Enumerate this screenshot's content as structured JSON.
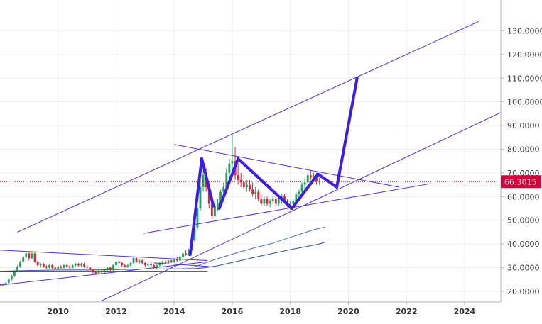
{
  "chart_data": {
    "type": "line",
    "title": "",
    "xlabel": "",
    "ylabel": "",
    "xlim": [
      2008.0,
      2025.25
    ],
    "ylim": [
      15.5,
      143.0
    ],
    "x_ticks": [
      "2010",
      "2012",
      "2014",
      "2016",
      "2018",
      "2020",
      "2022",
      "2024"
    ],
    "y_ticks": [
      "20.0000",
      "30.0000",
      "40.0000",
      "50.0000",
      "60.0000",
      "70.0000",
      "80.0000",
      "90.0000",
      "100.0000",
      "110.0000",
      "120.0000",
      "130.0000"
    ],
    "grid": true,
    "legend": "none",
    "current_price": {
      "label": "66.3015",
      "value": 66.3015,
      "color": "#d50039"
    },
    "colors": {
      "up": "#1fa65a",
      "down": "#e0223c",
      "trendline": "#4a2ee0",
      "projection": "#3a1cf0",
      "ma_fast": "#4a76b8",
      "ma_slow": "#2f4f9e",
      "axis_text": "#333333",
      "grid": "#e9eef4"
    },
    "candles": [
      [
        2008.0,
        23.0,
        23.3,
        22.2,
        22.5
      ],
      [
        2008.1,
        22.5,
        23.2,
        22.0,
        22.8
      ],
      [
        2008.2,
        22.8,
        24.0,
        22.5,
        23.5
      ],
      [
        2008.3,
        23.5,
        25.5,
        23.2,
        25.0
      ],
      [
        2008.4,
        25.0,
        27.0,
        24.5,
        26.5
      ],
      [
        2008.5,
        26.5,
        29.0,
        26.0,
        28.5
      ],
      [
        2008.6,
        28.5,
        31.0,
        28.0,
        30.5
      ],
      [
        2008.7,
        30.5,
        33.0,
        30.0,
        32.5
      ],
      [
        2008.8,
        32.5,
        35.0,
        32.0,
        34.5
      ],
      [
        2008.9,
        34.5,
        37.0,
        34.0,
        36.0
      ],
      [
        2009.0,
        36.0,
        36.5,
        33.0,
        34.0
      ],
      [
        2009.1,
        34.0,
        36.5,
        33.5,
        36.0
      ],
      [
        2009.2,
        36.0,
        36.5,
        32.0,
        32.5
      ],
      [
        2009.3,
        32.5,
        33.0,
        30.5,
        31.0
      ],
      [
        2009.4,
        31.0,
        32.0,
        30.0,
        31.5
      ],
      [
        2009.5,
        31.5,
        32.0,
        30.0,
        30.5
      ],
      [
        2009.6,
        30.5,
        31.0,
        29.5,
        30.0
      ],
      [
        2009.7,
        30.0,
        31.5,
        29.5,
        31.0
      ],
      [
        2009.8,
        31.0,
        31.5,
        29.5,
        30.0
      ],
      [
        2009.9,
        30.0,
        30.5,
        29.0,
        29.5
      ],
      [
        2010.0,
        29.5,
        31.0,
        29.0,
        30.5
      ],
      [
        2010.1,
        30.5,
        31.0,
        29.5,
        30.0
      ],
      [
        2010.2,
        30.0,
        31.5,
        29.5,
        31.0
      ],
      [
        2010.3,
        31.0,
        31.5,
        30.0,
        30.5
      ],
      [
        2010.4,
        30.5,
        31.0,
        29.5,
        30.0
      ],
      [
        2010.5,
        30.0,
        31.5,
        29.5,
        31.0
      ],
      [
        2010.6,
        31.0,
        32.0,
        30.5,
        31.5
      ],
      [
        2010.7,
        31.5,
        32.0,
        30.5,
        31.0
      ],
      [
        2010.8,
        31.0,
        32.0,
        30.5,
        31.5
      ],
      [
        2010.9,
        31.5,
        32.0,
        30.0,
        30.5
      ],
      [
        2011.0,
        30.5,
        31.0,
        29.5,
        30.0
      ],
      [
        2011.1,
        30.0,
        30.5,
        28.5,
        29.0
      ],
      [
        2011.2,
        29.0,
        29.5,
        27.5,
        28.0
      ],
      [
        2011.3,
        28.0,
        28.5,
        27.0,
        27.5
      ],
      [
        2011.4,
        27.5,
        29.0,
        27.0,
        28.5
      ],
      [
        2011.5,
        28.5,
        29.0,
        27.5,
        28.0
      ],
      [
        2011.6,
        28.0,
        29.5,
        27.5,
        29.0
      ],
      [
        2011.7,
        29.0,
        30.5,
        28.5,
        30.0
      ],
      [
        2011.8,
        30.0,
        30.5,
        28.5,
        29.0
      ],
      [
        2011.9,
        29.0,
        31.5,
        28.5,
        31.0
      ],
      [
        2012.0,
        31.0,
        33.0,
        30.5,
        32.5
      ],
      [
        2012.1,
        32.5,
        33.5,
        31.5,
        32.0
      ],
      [
        2012.2,
        32.0,
        32.5,
        30.5,
        31.0
      ],
      [
        2012.3,
        31.0,
        31.5,
        30.0,
        30.5
      ],
      [
        2012.4,
        30.5,
        31.5,
        30.0,
        31.0
      ],
      [
        2012.5,
        31.0,
        32.5,
        30.5,
        32.0
      ],
      [
        2012.6,
        32.0,
        34.5,
        31.5,
        34.0
      ],
      [
        2012.7,
        34.0,
        34.5,
        32.0,
        32.5
      ],
      [
        2012.8,
        32.5,
        33.5,
        31.5,
        33.0
      ],
      [
        2012.9,
        33.0,
        33.5,
        31.5,
        32.0
      ],
      [
        2013.0,
        32.0,
        32.5,
        30.5,
        31.0
      ],
      [
        2013.1,
        31.0,
        32.0,
        30.5,
        31.5
      ],
      [
        2013.2,
        31.5,
        32.5,
        30.5,
        31.0
      ],
      [
        2013.3,
        31.0,
        31.5,
        29.5,
        30.0
      ],
      [
        2013.4,
        30.0,
        31.5,
        29.5,
        31.0
      ],
      [
        2013.5,
        31.0,
        32.5,
        30.5,
        32.0
      ],
      [
        2013.6,
        32.0,
        33.0,
        31.0,
        32.5
      ],
      [
        2013.7,
        32.5,
        33.0,
        31.5,
        32.0
      ],
      [
        2013.8,
        32.0,
        33.5,
        31.5,
        33.0
      ],
      [
        2013.9,
        33.0,
        33.5,
        32.0,
        32.5
      ],
      [
        2014.0,
        32.5,
        34.0,
        32.0,
        33.5
      ],
      [
        2014.1,
        33.5,
        34.5,
        32.5,
        33.0
      ],
      [
        2014.2,
        33.0,
        35.0,
        32.5,
        34.5
      ],
      [
        2014.3,
        34.5,
        36.5,
        34.0,
        36.0
      ],
      [
        2014.4,
        36.0,
        37.5,
        35.0,
        35.5
      ],
      [
        2014.5,
        35.5,
        38.0,
        35.0,
        37.5
      ],
      [
        2014.6,
        37.5,
        42.0,
        37.0,
        41.5
      ],
      [
        2014.7,
        41.5,
        48.0,
        41.0,
        47.0
      ],
      [
        2014.8,
        47.0,
        56.0,
        46.0,
        55.0
      ],
      [
        2014.9,
        55.0,
        66.0,
        54.0,
        64.0
      ],
      [
        2015.0,
        64.0,
        72.0,
        62.0,
        69.0
      ],
      [
        2015.1,
        69.0,
        72.0,
        62.0,
        64.0
      ],
      [
        2015.2,
        64.0,
        66.0,
        55.0,
        57.0
      ],
      [
        2015.3,
        57.0,
        60.0,
        50.5,
        52.0
      ],
      [
        2015.4,
        52.0,
        58.0,
        51.0,
        56.0
      ],
      [
        2015.5,
        56.0,
        59.0,
        54.0,
        57.0
      ],
      [
        2015.6,
        57.0,
        63.0,
        56.0,
        62.0
      ],
      [
        2015.7,
        62.0,
        66.0,
        60.0,
        64.0
      ],
      [
        2015.8,
        64.0,
        72.0,
        63.0,
        70.0
      ],
      [
        2015.9,
        70.0,
        76.0,
        68.0,
        74.0
      ],
      [
        2016.0,
        74.0,
        86.0,
        71.0,
        75.0
      ],
      [
        2016.1,
        75.0,
        81.0,
        67.0,
        69.0
      ],
      [
        2016.2,
        69.0,
        74.0,
        65.0,
        67.0
      ],
      [
        2016.3,
        67.0,
        70.0,
        64.0,
        66.0
      ],
      [
        2016.4,
        66.0,
        69.0,
        63.0,
        64.0
      ],
      [
        2016.5,
        64.0,
        67.0,
        62.0,
        65.0
      ],
      [
        2016.6,
        65.0,
        67.0,
        62.0,
        63.0
      ],
      [
        2016.7,
        63.0,
        66.0,
        60.0,
        61.0
      ],
      [
        2016.8,
        61.0,
        64.0,
        59.0,
        62.0
      ],
      [
        2016.9,
        62.0,
        63.0,
        58.0,
        59.0
      ],
      [
        2017.0,
        59.0,
        61.0,
        56.0,
        57.0
      ],
      [
        2017.1,
        57.0,
        60.0,
        56.0,
        59.0
      ],
      [
        2017.2,
        59.0,
        60.0,
        56.0,
        57.0
      ],
      [
        2017.3,
        57.0,
        59.0,
        55.5,
        58.0
      ],
      [
        2017.4,
        58.0,
        60.0,
        57.0,
        59.0
      ],
      [
        2017.5,
        59.0,
        60.0,
        56.0,
        57.0
      ],
      [
        2017.6,
        57.0,
        60.0,
        56.0,
        59.0
      ],
      [
        2017.7,
        59.0,
        61.0,
        57.0,
        60.0
      ],
      [
        2017.8,
        60.0,
        61.0,
        57.0,
        58.0
      ],
      [
        2017.9,
        58.0,
        59.0,
        55.5,
        56.0
      ],
      [
        2018.0,
        56.0,
        58.0,
        54.5,
        57.0
      ],
      [
        2018.1,
        57.0,
        59.0,
        56.0,
        58.0
      ],
      [
        2018.2,
        58.0,
        62.0,
        57.0,
        61.0
      ],
      [
        2018.3,
        61.0,
        63.0,
        60.0,
        62.0
      ],
      [
        2018.4,
        62.0,
        66.0,
        61.0,
        65.0
      ],
      [
        2018.5,
        65.0,
        68.0,
        63.0,
        66.0
      ],
      [
        2018.6,
        66.0,
        70.0,
        64.0,
        69.0
      ],
      [
        2018.7,
        69.0,
        71.0,
        67.0,
        68.0
      ],
      [
        2018.8,
        68.0,
        70.0,
        66.0,
        69.0
      ],
      [
        2018.9,
        69.0,
        70.0,
        65.0,
        66.3
      ],
      [
        2019.0,
        66.3,
        68.0,
        65.0,
        66.3
      ]
    ],
    "moving_averages": [
      {
        "color_key": "ma_fast",
        "x": [
          2014.6,
          2014.9,
          2015.3,
          2015.8,
          2016.3,
          2016.8,
          2017.3,
          2017.8,
          2018.3,
          2018.8,
          2019.2
        ],
        "y": [
          30.0,
          31.2,
          33.0,
          35.0,
          36.8,
          38.5,
          40.0,
          42.0,
          44.0,
          46.0,
          47.2
        ]
      },
      {
        "color_key": "ma_slow",
        "x": [
          2014.6,
          2015.0,
          2015.5,
          2016.0,
          2016.5,
          2017.0,
          2017.5,
          2018.0,
          2018.5,
          2019.0,
          2019.2
        ],
        "y": [
          29.5,
          29.9,
          30.8,
          32.2,
          33.6,
          35.0,
          36.3,
          37.6,
          38.8,
          40.0,
          40.8
        ]
      },
      {
        "color_key": "ma_slow",
        "x": [
          2008.0,
          2009.0,
          2010.0,
          2011.0,
          2012.0,
          2013.0,
          2014.0,
          2014.6
        ],
        "y": [
          28.5,
          28.8,
          29.0,
          29.0,
          29.2,
          29.4,
          29.5,
          29.6
        ]
      }
    ],
    "trendlines": [
      {
        "x": [
          2008.6,
          2024.5
        ],
        "y": [
          45.0,
          134.0
        ],
        "width": 1
      },
      {
        "x": [
          2011.5,
          2025.25
        ],
        "y": [
          16.0,
          95.5
        ],
        "width": 1
      },
      {
        "x": [
          2014.0,
          2021.75
        ],
        "y": [
          82.0,
          64.0
        ],
        "width": 1
      },
      {
        "x": [
          2012.95,
          2022.85
        ],
        "y": [
          44.5,
          65.5
        ],
        "width": 1
      },
      {
        "x": [
          2007.9,
          2015.15
        ],
        "y": [
          37.5,
          33.0
        ],
        "width": 1
      },
      {
        "x": [
          2007.9,
          2015.15
        ],
        "y": [
          22.5,
          32.5
        ],
        "width": 1
      },
      {
        "x": [
          2007.9,
          2015.15
        ],
        "y": [
          28.5,
          28.5
        ],
        "width": 1
      },
      {
        "x": [
          2013.3,
          2015.2
        ],
        "y": [
          32.0,
          30.5
        ],
        "width": 1
      }
    ],
    "projection_path": {
      "x": [
        2014.55,
        2014.95,
        2015.35,
        2015.55,
        2016.2,
        2018.05,
        2018.95,
        2019.6,
        2020.3
      ],
      "y": [
        35.5,
        76.0,
        56.0,
        55.0,
        76.0,
        55.0,
        69.5,
        64.0,
        110.0
      ]
    },
    "ticks_x": [
      2010,
      2012,
      2014,
      2016,
      2018,
      2020,
      2022,
      2024
    ],
    "ticks_y": [
      20,
      30,
      40,
      50,
      60,
      70,
      80,
      90,
      100,
      110,
      120,
      130
    ]
  }
}
